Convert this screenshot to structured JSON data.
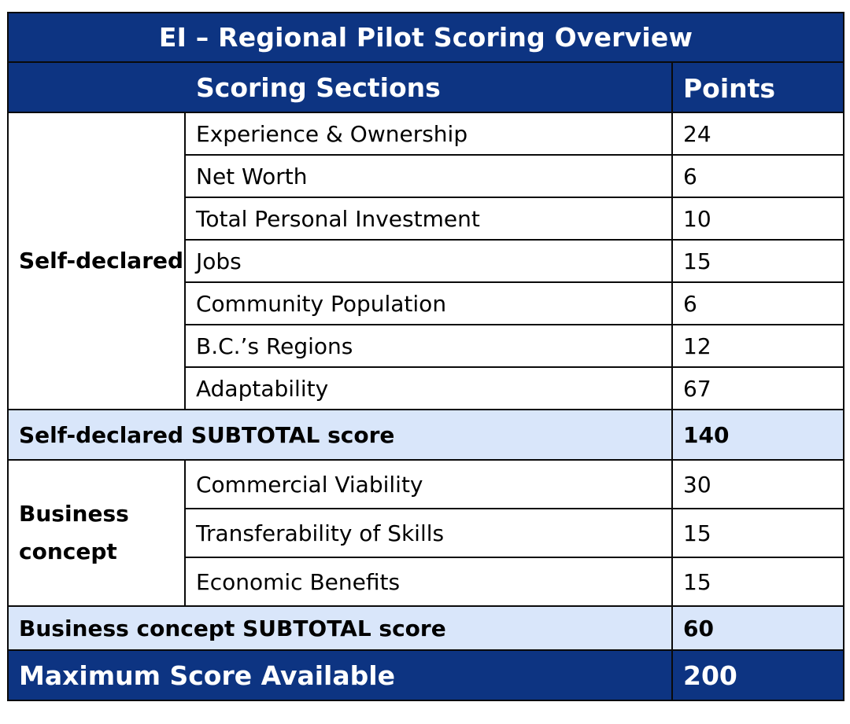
{
  "title": "EI – Regional Pilot Scoring Overview",
  "header": {
    "sections": "Scoring Sections",
    "points": "Points"
  },
  "self_declared": {
    "group_label": "Self-declared",
    "items": [
      {
        "label": "Experience & Ownership",
        "points": "24"
      },
      {
        "label": "Net Worth",
        "points": "6"
      },
      {
        "label": "Total Personal Investment",
        "points": "10"
      },
      {
        "label": "Jobs",
        "points": "15"
      },
      {
        "label": "Community Population",
        "points": "6"
      },
      {
        "label": "B.C.’s Regions",
        "points": "12"
      },
      {
        "label": "Adaptability",
        "points": "67"
      }
    ],
    "subtotal_label": "Self-declared SUBTOTAL score",
    "subtotal_points": "140"
  },
  "business_concept": {
    "group_label_line1": "Business",
    "group_label_line2": "concept",
    "items": [
      {
        "label": "Commercial Viability",
        "points": "30"
      },
      {
        "label": "Transferability of Skills",
        "points": "15"
      },
      {
        "label": "Economic Benefits",
        "points": "15"
      }
    ],
    "subtotal_label": "Business concept SUBTOTAL score",
    "subtotal_points": "60"
  },
  "maximum": {
    "label": "Maximum Score Available",
    "points": "200"
  },
  "colors": {
    "header_navy": "#0d3482",
    "subtotal_fill": "#d9e6fa",
    "border": "#0a0a0a"
  }
}
